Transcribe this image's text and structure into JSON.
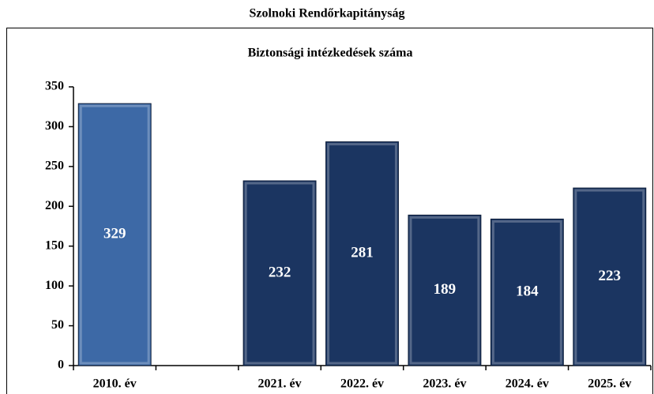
{
  "chart_data": {
    "type": "bar",
    "title": "Szolnoki Rendőrkapitányság",
    "subtitle": "Biztonsági intézkedések száma",
    "categories": [
      "2010. év",
      null,
      "2021. év",
      "2022. év",
      "2023. év",
      "2024. év",
      "2025. év"
    ],
    "values": [
      329,
      null,
      232,
      281,
      189,
      184,
      223
    ],
    "colors": [
      "#3d69a6",
      null,
      "#1b3561",
      "#1b3561",
      "#1b3561",
      "#1b3561",
      "#1b3561"
    ],
    "ylim": [
      0,
      350
    ],
    "yticks": [
      0,
      50,
      100,
      150,
      200,
      250,
      300,
      350
    ],
    "grid": false
  }
}
